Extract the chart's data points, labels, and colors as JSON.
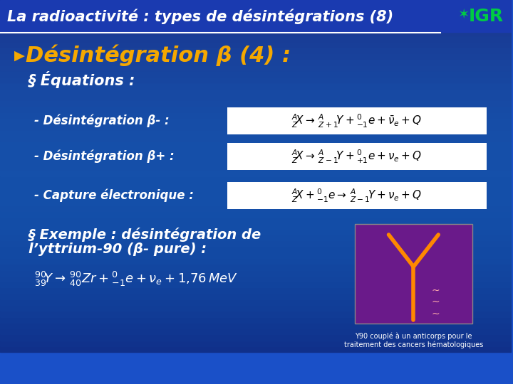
{
  "title": "La radioactivité : types de désintégrations (8)",
  "header_bg": "#1a3aad",
  "body_bg_top": "#1a50c8",
  "body_bg_bottom": "#1a3aad",
  "header_text_color": "#ffffff",
  "title_font_size": 15,
  "bullet1_text": "Désintégration β (4) :",
  "bullet1_color": "#f5a800",
  "bullet1_size": 22,
  "section_bullet_color": "#ffffff",
  "eq_label_color": "#ffffff",
  "eq_box_color": "#ffffff",
  "eq_text_color": "#000000",
  "label_minus": "- Désintégration β- :",
  "label_plus": "- Désintégration β+ :",
  "label_capture": "- Capture électronique :",
  "eq_minus": "$^A_Z\\!X \\rightarrow\\, ^A_{Z+1}\\!Y + ^0_{-1}e + \\bar{\\nu}_e + Q$",
  "eq_plus": "$^A_Z\\!X \\rightarrow\\, ^A_{Z-1}\\!Y + ^0_{+1}e + \\nu_e + Q$",
  "eq_capture": "$^A_Z\\!X + ^0_{-1}e \\rightarrow\\, ^A_{Z-1}\\!Y + \\nu_e + Q$",
  "example_bullet": "§ Exemple : désintégration de\nl’yttrium-90 (β- pure) :",
  "example_eq": "$^{90}_{39}\\!Y \\rightarrow\\, ^{90}_{40}Zr + ^0_{-1}e + \\nu_e + 1{,}76\\,MeV$",
  "igr_text": "IGR",
  "caption_text": "Y90 couplé à un anticorps pour le\ntraitement des cancers hématologiques"
}
